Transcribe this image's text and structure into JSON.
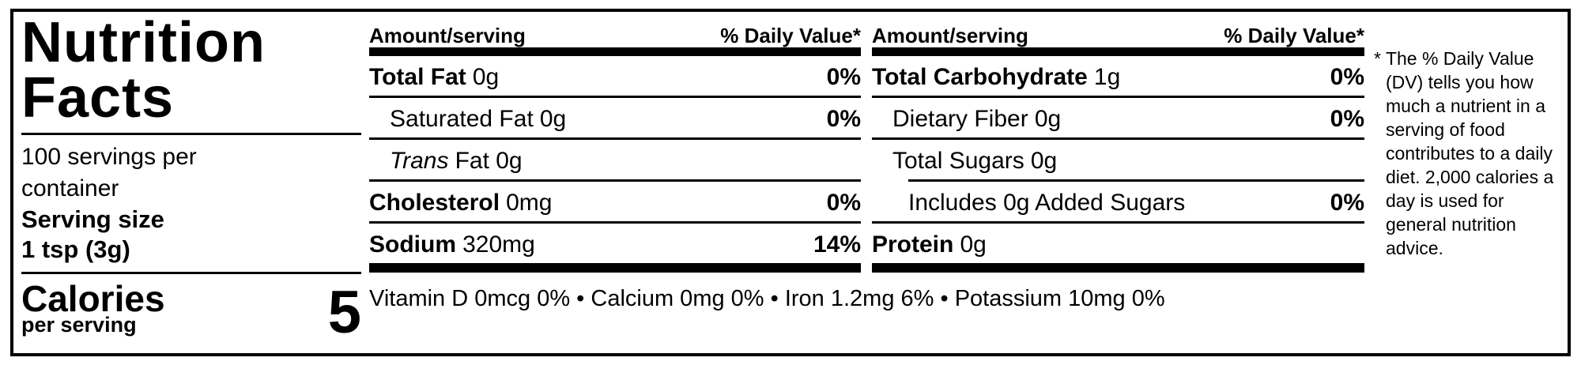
{
  "label": {
    "title_line1": "Nutrition",
    "title_line2": "Facts",
    "servings_per_container": "100 servings per container",
    "serving_size_label": "Serving size",
    "serving_size_value": "1 tsp (3g)",
    "calories_label": "Calories",
    "calories_sublabel": "per serving",
    "calories_value": "5",
    "table": {
      "header": {
        "amount": "Amount/serving",
        "daily_value": "% Daily Value*"
      },
      "col1": [
        {
          "name": "Total Fat",
          "amount": "0g",
          "dv": "0%"
        },
        {
          "name": "Saturated Fat",
          "amount": "0g",
          "dv": "0%"
        },
        {
          "name": "Trans",
          "amount": "Fat 0g",
          "dv": ""
        },
        {
          "name": "Cholesterol",
          "amount": "0mg",
          "dv": "0%"
        },
        {
          "name": "Sodium",
          "amount": "320mg",
          "dv": "14%"
        }
      ],
      "col2": [
        {
          "name": "Total Carbohydrate",
          "amount": "1g",
          "dv": "0%"
        },
        {
          "name": "Dietary Fiber",
          "amount": "0g",
          "dv": "0%"
        },
        {
          "name": "Total Sugars",
          "amount": "0g",
          "dv": ""
        },
        {
          "name": "Includes 0g Added Sugars",
          "amount": "",
          "dv": "0%"
        },
        {
          "name": "Protein",
          "amount": "0g",
          "dv": ""
        }
      ]
    },
    "micronutrients": "Vitamin D 0mcg 0% • Calcium 0mg 0% • Iron 1.2mg 6% • Potassium 10mg 0%",
    "footnote": {
      "marker": "*",
      "text": "The % Daily Value (DV) tells you how much a nutrient in a serving of food contributes to a daily diet. 2,000 calories a day is used for general nutrition advice."
    },
    "colors": {
      "text": "#000000",
      "background": "#ffffff"
    }
  }
}
